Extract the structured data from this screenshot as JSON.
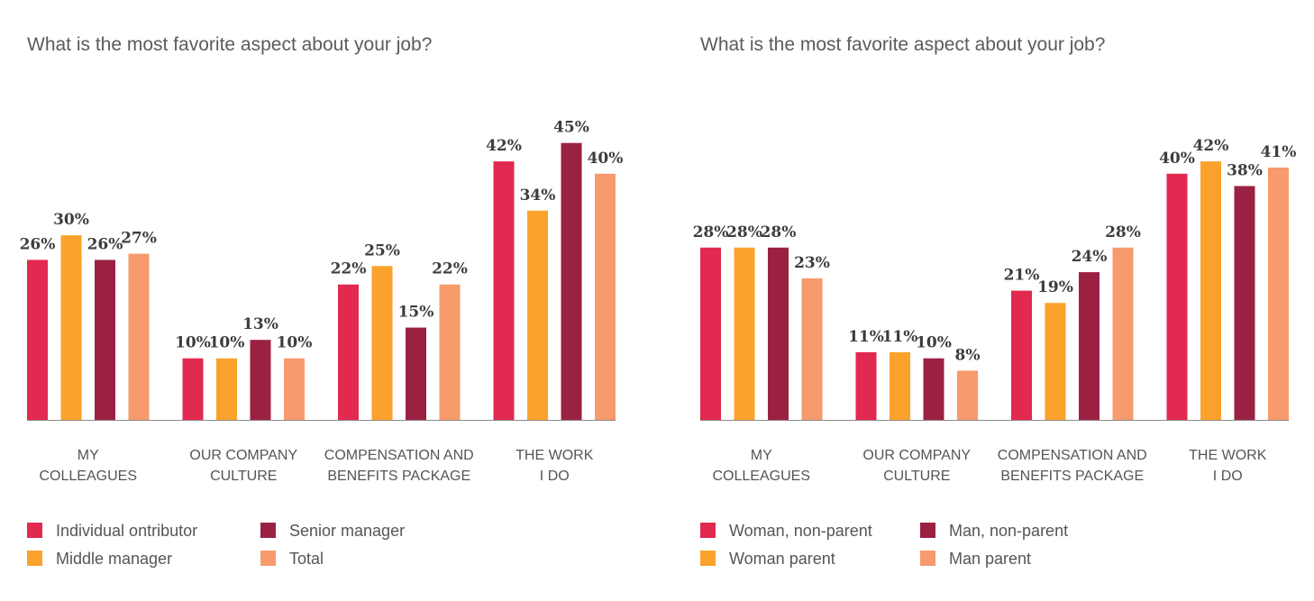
{
  "chart_data": [
    {
      "type": "bar",
      "title": "What is the most favorite aspect about your job?",
      "categories": [
        [
          "MY",
          "COLLEAGUES"
        ],
        [
          "OUR COMPANY",
          "CULTURE"
        ],
        [
          "COMPENSATION AND",
          "BENEFITS PACKAGE"
        ],
        [
          "THE WORK",
          "I DO"
        ]
      ],
      "series": [
        {
          "name": "Individual ontributor",
          "color": "#e2294f",
          "values": [
            26,
            10,
            22,
            42
          ],
          "labels": [
            "26%",
            "10%",
            "22%",
            "42%"
          ]
        },
        {
          "name": "Middle manager",
          "color": "#fba22c",
          "values": [
            30,
            10,
            25,
            34
          ],
          "labels": [
            "30%",
            "10%",
            "25%",
            "34%"
          ]
        },
        {
          "name": "Senior manager",
          "color": "#9b2143",
          "values": [
            26,
            13,
            15,
            45
          ],
          "labels": [
            "26%",
            "13%",
            "15%",
            "45%"
          ]
        },
        {
          "name": "Total",
          "color": "#f79a6c",
          "values": [
            27,
            10,
            22,
            40
          ],
          "labels": [
            "27%",
            "10%",
            "22%",
            "40%"
          ]
        }
      ],
      "ylim": [
        0,
        50
      ],
      "legend_position": "bottom",
      "grid": false
    },
    {
      "type": "bar",
      "title": "What is the most favorite aspect about your job?",
      "categories": [
        [
          "MY",
          "COLLEAGUES"
        ],
        [
          "OUR COMPANY",
          "CULTURE"
        ],
        [
          "COMPENSATION AND",
          "BENEFITS PACKAGE"
        ],
        [
          "THE WORK",
          "I DO"
        ]
      ],
      "series": [
        {
          "name": "Woman, non-parent",
          "color": "#e2294f",
          "values": [
            28,
            11,
            21,
            40
          ],
          "labels": [
            "28%",
            "11%",
            "21%",
            "40%"
          ]
        },
        {
          "name": "Woman parent",
          "color": "#fba22c",
          "values": [
            28,
            11,
            19,
            42
          ],
          "labels": [
            "28%",
            "11%",
            "19%",
            "42%"
          ]
        },
        {
          "name": "Man, non-parent",
          "color": "#9b2143",
          "values": [
            28,
            10,
            24,
            38
          ],
          "labels": [
            "28%",
            "10%",
            "24%",
            "38%"
          ]
        },
        {
          "name": "Man parent",
          "color": "#f79a6c",
          "values": [
            23,
            8,
            28,
            41
          ],
          "labels": [
            "23%",
            "8%",
            "28%",
            "41%"
          ]
        }
      ],
      "ylim": [
        0,
        50
      ],
      "legend_position": "bottom",
      "grid": false
    }
  ]
}
